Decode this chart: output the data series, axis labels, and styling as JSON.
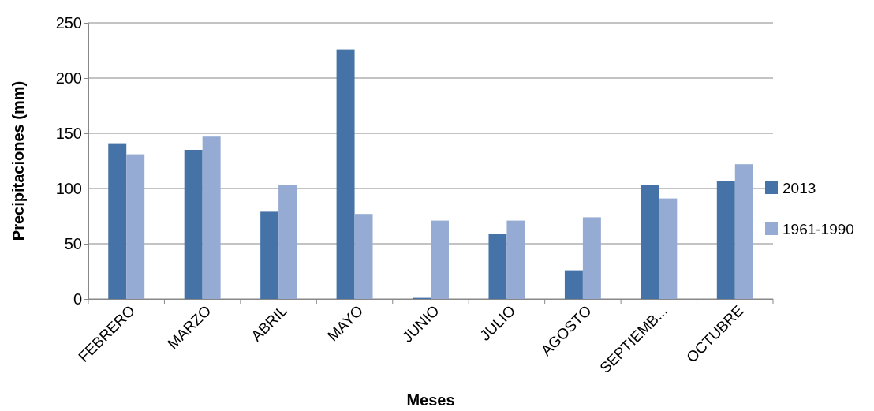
{
  "chart_data": {
    "type": "bar",
    "xlabel": "Meses",
    "ylabel": "Precipitaciones (mm)",
    "categories": [
      "FEBRERO",
      "MARZO",
      "ABRIL",
      "MAYO",
      "JUNIO",
      "JULIO",
      "AGOSTO",
      "SEPTIEMB...",
      "OCTUBRE"
    ],
    "series": [
      {
        "name": "2013",
        "color": "#4573a7",
        "values": [
          141,
          135,
          79,
          226,
          1,
          59,
          26,
          103,
          107
        ]
      },
      {
        "name": "1961-1990",
        "color": "#95abd3",
        "values": [
          131,
          147,
          103,
          77,
          71,
          71,
          74,
          91,
          122
        ]
      }
    ],
    "ylim": [
      0,
      250
    ],
    "yticks": [
      0,
      50,
      100,
      150,
      200,
      250
    ],
    "grid": "y",
    "legend": "right"
  }
}
